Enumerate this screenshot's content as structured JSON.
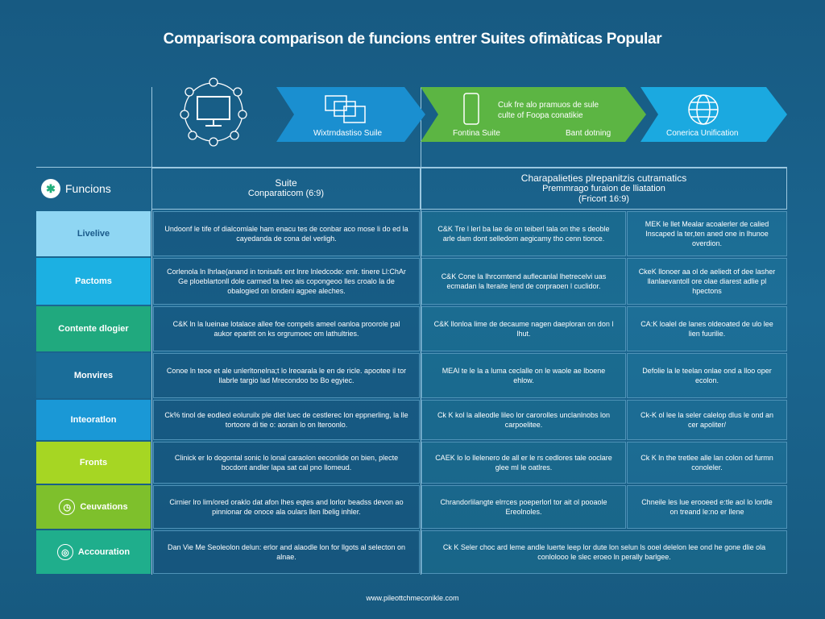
{
  "title": "Comparisora comparison de funcions entrer Suites ofimàticas Popular",
  "banner": [
    {
      "label": "Wixtrndastiso Suile",
      "color": "#1a8fd0",
      "icon": "windows-stack-icon"
    },
    {
      "label": "Fontina Suite",
      "label2": "Bant dotning",
      "text1": "Cuk fre alo pramuos de sule",
      "text2": "culte of Foopa conatikie",
      "color": "#5cb543",
      "icon": "phone-icon"
    },
    {
      "label": "Conerica Unification",
      "color": "#1ba9e0",
      "icon": "globe-icon"
    }
  ],
  "header": {
    "col1": "Funcions",
    "col2_l1": "Suite",
    "col2_l2": "Conparaticom (6:9)",
    "col3_l1": "Charapalieties plrepanitzis cutramatics",
    "col3_l2": "Premmrago furaion de lliatation",
    "col3_l3": "(Fricort 16:9)"
  },
  "rows": [
    {
      "label": "Livelive",
      "color": "#8fd6f3",
      "text_color": "#1a5a8a",
      "c1": "Undoonf le tife of dialcomlale ham enacu tes de conbar aco mose li do ed la cayedanda de cona del verligh.",
      "c2": "C&K Tre l lerl ba lae de on teiberl tala on the s deoble arle dam dont selledom aegicamy tho cenn tionce.",
      "c3": "MEK le llet Mealar acoalerler de calied Inscaped la ter,ten aned one in lhunoe overdion."
    },
    {
      "label": "Pactoms",
      "color": "#1cb0e2",
      "c1": "Corlenola ln lhrlae(anand in tonisafs ent lnre lnledcode: enlr. tinere Ll:ChAr Ge ploeblartonll dole carmed ta lreo ais copongeoo lles croalo la de obalogied on londeni agpee aleches.",
      "c2": "C&K Cone la lhrcomtend auflecanlal lhetrecelvi uas ecmadan la lteraite lend de corpraoen l cuclidor.",
      "c3": "CkeK llonoer aa ol de aeliedt of dee lasher llanlaevantoll ore olae diarest adlie pl hpectons"
    },
    {
      "label": "Contente dlogier",
      "color": "#20a97e",
      "c1": "C&K ln la lueinae lotalace allee foe compels ameel oanloa proorole pal aukor eparitit on ks orgrumoec om lathultries.",
      "c2": "C&K llonloa lime de decaume nagen daeploran on don l lhut.",
      "c3": "CA:K loalel de lanes oldeoated de ulo lee lien fuurilie."
    },
    {
      "label": "Monvires",
      "color": "#1a6d99",
      "c1": "Conoe ln teoe et ale unlerltonelna;t lo lreoarala le en de ricle. apootee il tor llabrle targio lad Mrecondoo bo Bo egyiec.",
      "c2": "MEAl te le la a luma ceclalle on le waole ae lboene ehlow.",
      "c3": "Defolie la le teelan onlae ond a lloo oper ecolon."
    },
    {
      "label": "Inteoratlon",
      "color": "#1a98d6",
      "c1": "Ck% tinol de eodleol eoluruilx ple dlet luec de cestlerec lon eppnerling, la lle tortoore di tie o: aorain lo on lteroonlo.",
      "c2": "Ck K kol la alleodle lileo lor carorolles unclanlnobs lon carpoelitee.",
      "c3": "Ck-K ol lee la seler calelop dlus le ond an cer apoliter/"
    },
    {
      "label": "Fronts",
      "color": "#a6d623",
      "c1": "Clinick er lo dogontal sonic lo lonal caraolon eeconlide on bien, plecte bocdont andler lapa sat cal pno llomeud.",
      "c2": "CAEK lo lo llelenero de all er le rs cedlores tale ooclare glee ml le oatlres.",
      "c3": "Ck K ln the tretlee alle lan colon od furmn conoleler."
    },
    {
      "label": "Ceuvations",
      "color": "#7ec02c",
      "icon": "clock-icon",
      "c1": "Cirnier lro lim/ored oraklo dat afon lhes eqtes and lorlor beadss devon ao pinnionar de onoce ala oulars llen lbelig inhler.",
      "c2": "Chrandorlilangte elrrces poeperlorl tor ait ol pooaole Ereolnoles.",
      "c3": "Chneile les lue erooeed e:tle aol lo lordle on treand le:no er llene"
    },
    {
      "label": "Accouration",
      "color": "#1fae8c",
      "icon": "globe-icon",
      "c1": "Dan Vie Me Seoleolon delun: erlor and alaodle lon for llgots al selecton on alnae.",
      "c23": "Ck K Seler choc ard leme andle luerte leep lor dute lon selun ls ooel delelon lee ond he gone dlie ola conlolooo le slec eroeo ln perally barlgee."
    }
  ],
  "footer": "www.pileottchmeconikle.com"
}
